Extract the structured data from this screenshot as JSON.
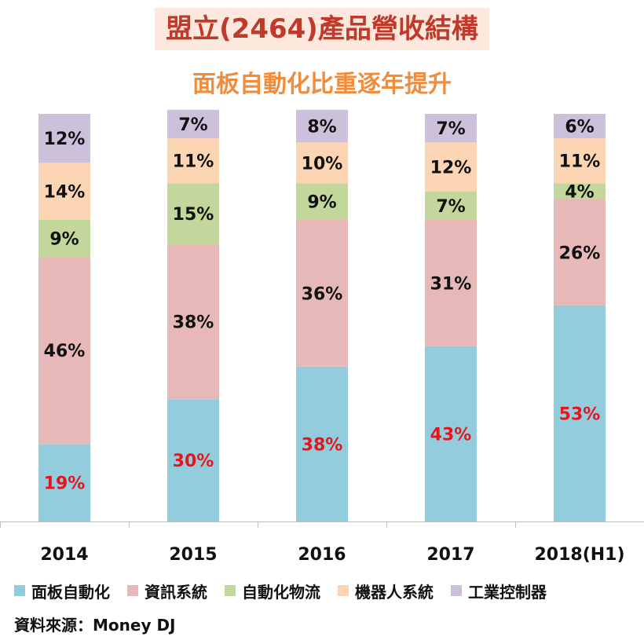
{
  "title": "盟立(2464)產品營收結構",
  "subtitle": "面板自動化比重逐年提升",
  "source": "資料來源：Money DJ",
  "colors": {
    "title_bg": "#fce8dc",
    "title_text": "#c0392b",
    "subtitle_text": "#f08c3c",
    "highlight_label": "#e8141c",
    "label": "#111111"
  },
  "chart_data": {
    "type": "bar",
    "stacked": true,
    "categories": [
      "2014",
      "2015",
      "2016",
      "2017",
      "2018(H1)"
    ],
    "series": [
      {
        "name": "面板自動化",
        "color": "#93cddd",
        "values": [
          19,
          30,
          38,
          43,
          53
        ],
        "labels": [
          "19%",
          "30%",
          "38%",
          "43%",
          "53%"
        ],
        "highlight": true
      },
      {
        "name": "資訊系統",
        "color": "#e6b9b8",
        "values": [
          46,
          38,
          36,
          31,
          26
        ],
        "labels": [
          "46%",
          "38%",
          "36%",
          "31%",
          "26%"
        ]
      },
      {
        "name": "自動化物流",
        "color": "#c3d69b",
        "values": [
          9,
          15,
          9,
          7,
          4
        ],
        "labels": [
          "9%",
          "15%",
          "9%",
          "7%",
          "4%"
        ]
      },
      {
        "name": "機器人系統",
        "color": "#fcd5b5",
        "values": [
          14,
          11,
          10,
          12,
          11
        ],
        "labels": [
          "14%",
          "11%",
          "10%",
          "12%",
          "11%"
        ]
      },
      {
        "name": "工業控制器",
        "color": "#ccc0da",
        "values": [
          12,
          7,
          8,
          7,
          6
        ],
        "labels": [
          "12%",
          "7%",
          "8%",
          "7%",
          "6%"
        ]
      }
    ],
    "ylim": [
      0,
      100
    ],
    "grid": false,
    "legend_position": "bottom"
  }
}
